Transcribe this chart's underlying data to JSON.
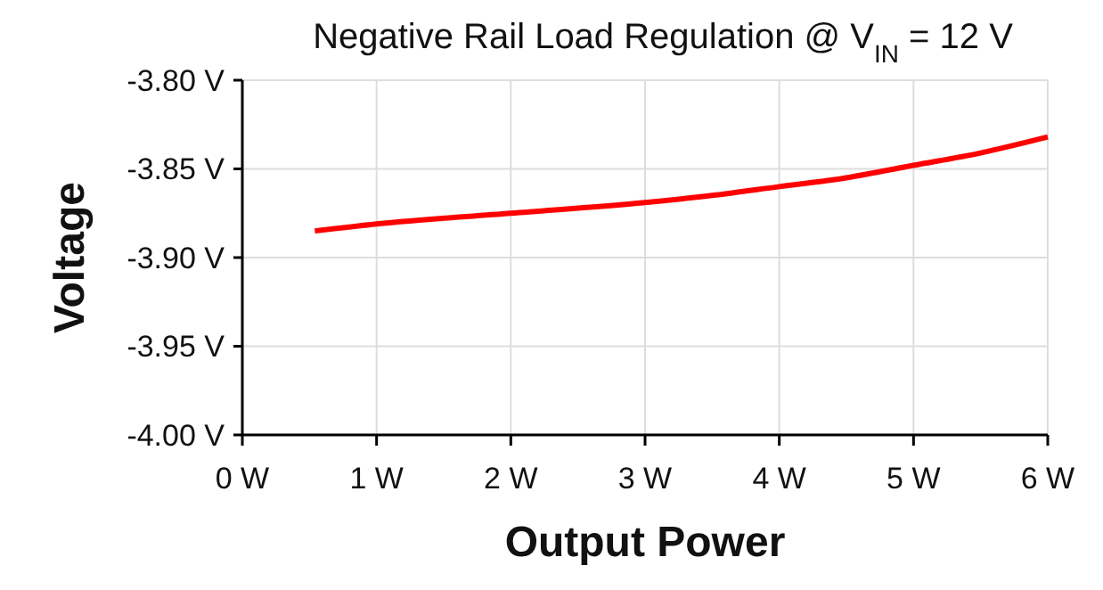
{
  "chart_data": {
    "type": "line",
    "title": "Negative Rail Load Regulation @ V$_{IN}$ = 12 V",
    "xlabel": "Output Power",
    "ylabel": "Voltage",
    "x": [
      0.54,
      1,
      2,
      3,
      3.5,
      4,
      4.5,
      5,
      5.5,
      6
    ],
    "series": [
      {
        "color": "#ff0000",
        "values": [
          -3.885,
          -3.881,
          -3.875,
          -3.869,
          -3.865,
          -3.86,
          -3.855,
          -3.848,
          -3.841,
          -3.832
        ]
      }
    ],
    "xlim": [
      0,
      6
    ],
    "xticks": [
      {
        "value": 0,
        "label": "0 W"
      },
      {
        "value": 1,
        "label": "1 W"
      },
      {
        "value": 2,
        "label": "2 W"
      },
      {
        "value": 3,
        "label": "3 W"
      },
      {
        "value": 4,
        "label": "4 W"
      },
      {
        "value": 5,
        "label": "5 W"
      },
      {
        "value": 6,
        "label": "6 W"
      }
    ],
    "ylim": [
      -4.0,
      -3.8
    ],
    "yticks": [
      {
        "value": -4.0,
        "label": "-4.00 V"
      },
      {
        "value": -3.95,
        "label": "-3.95 V"
      },
      {
        "value": -3.9,
        "label": "-3.90 V"
      },
      {
        "value": -3.85,
        "label": "-3.85 V"
      },
      {
        "value": -3.8,
        "label": "-3.80 V"
      }
    ],
    "grid": true,
    "marker": "none",
    "line_style": "solid"
  }
}
